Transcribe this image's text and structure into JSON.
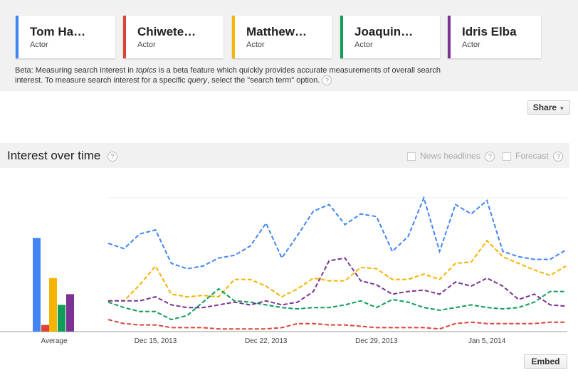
{
  "beta_note": {
    "parts": [
      "Beta: Measuring search interest in ",
      "topics",
      " is a beta feature which quickly provides accurate measurements of overall search",
      "interest. To measure search interest for a specific ",
      "query",
      ", select the \"search term\" option."
    ]
  },
  "help": "?",
  "share": "Share",
  "panel_title": "Interest over time",
  "options": [
    "News headlines",
    "Forecast"
  ],
  "embed": "Embed",
  "card_types": [
    "Actor",
    "Actor",
    "Actor",
    "Actor",
    "Actor"
  ],
  "chart_data": {
    "type": "line",
    "average_label": "Average",
    "ylim": [
      0,
      100
    ],
    "categories": [
      null,
      null,
      null,
      "Dec 15, 2013",
      null,
      null,
      null,
      null,
      null,
      null,
      "Dec 22, 2013",
      null,
      null,
      null,
      null,
      null,
      null,
      "Dec 29, 2013",
      null,
      null,
      null,
      null,
      null,
      null,
      "Jan 5, 2014",
      null,
      null,
      null,
      null,
      null
    ],
    "series": [
      {
        "name": "Tom Ha…",
        "color": "#4285f4",
        "average": 70,
        "values": [
          66,
          62,
          73,
          76,
          51,
          47,
          49,
          55,
          57,
          64,
          81,
          55,
          72,
          90,
          95,
          80,
          88,
          86,
          60,
          71,
          100,
          60,
          95,
          88,
          98,
          60,
          56,
          54,
          54,
          61
        ]
      },
      {
        "name": "Chiwete…",
        "color": "#db4437",
        "average": 5,
        "values": [
          9,
          6,
          5,
          5,
          3,
          3,
          3,
          2,
          2,
          2,
          2,
          3,
          6,
          6,
          5,
          5,
          4,
          3,
          3,
          3,
          3,
          2,
          6,
          7,
          6,
          6,
          6,
          6,
          7,
          7
        ]
      },
      {
        "name": "Matthew…",
        "color": "#f4b400",
        "average": 40,
        "values": [
          23,
          23,
          35,
          49,
          28,
          26,
          27,
          26,
          39,
          39,
          34,
          26,
          32,
          40,
          38,
          38,
          48,
          47,
          39,
          39,
          43,
          39,
          51,
          52,
          68,
          56,
          51,
          46,
          42,
          49
        ]
      },
      {
        "name": "Joaquin…",
        "color": "#0f9d58",
        "average": 20,
        "values": [
          22,
          18,
          15,
          15,
          9,
          12,
          22,
          32,
          23,
          22,
          20,
          18,
          17,
          18,
          18,
          20,
          23,
          18,
          24,
          22,
          18,
          16,
          18,
          20,
          18,
          17,
          18,
          22,
          30,
          30
        ]
      },
      {
        "name": "Idris Elba",
        "color": "#7b3294",
        "average": 28,
        "values": [
          23,
          23,
          23,
          26,
          20,
          18,
          18,
          20,
          22,
          20,
          23,
          20,
          22,
          30,
          53,
          55,
          38,
          35,
          28,
          30,
          31,
          28,
          37,
          34,
          40,
          34,
          24,
          28,
          20,
          19
        ]
      }
    ]
  }
}
